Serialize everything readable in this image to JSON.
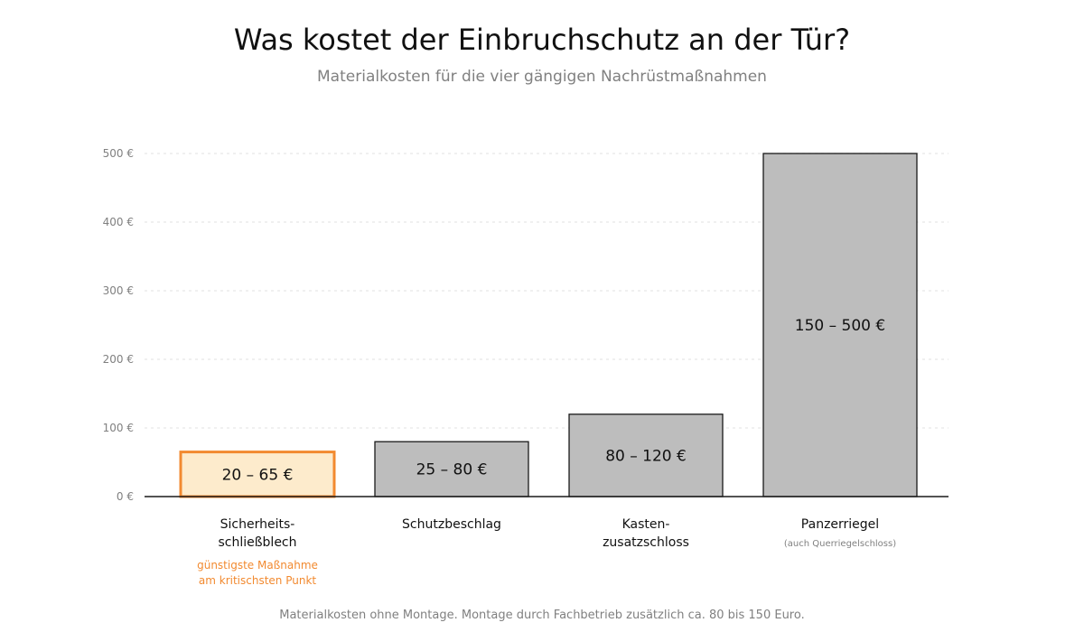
{
  "chart_data": {
    "type": "bar",
    "title": "Was kostet der Einbruchschutz an der Tür?",
    "subtitle": "Materialkosten für die vier gängigen Nachrüstmaßnahmen",
    "ylim": [
      0,
      500
    ],
    "yticks": [
      "0 €",
      "100 €",
      "200 €",
      "300 €",
      "400 €",
      "500 €"
    ],
    "grid": true,
    "categories": [
      {
        "label_lines": [
          "Sicherheits-",
          "schließblech"
        ],
        "value_min": 20,
        "value_max": 65,
        "bar_label": "20 – 65 €",
        "highlight": true,
        "note_lines": [
          "günstigste Maßnahme",
          "am kritischsten Punkt"
        ],
        "note_style": "accent"
      },
      {
        "label_lines": [
          "Schutzbeschlag"
        ],
        "value_min": 25,
        "value_max": 80,
        "bar_label": "25 – 80 €",
        "highlight": false,
        "note_lines": [],
        "note_style": ""
      },
      {
        "label_lines": [
          "Kasten-",
          "zusatzschloss"
        ],
        "value_min": 80,
        "value_max": 120,
        "bar_label": "80 – 120 €",
        "highlight": false,
        "note_lines": [],
        "note_style": ""
      },
      {
        "label_lines": [
          "Panzerriegel"
        ],
        "value_min": 150,
        "value_max": 500,
        "bar_label": "150 – 500 €",
        "highlight": false,
        "note_lines": [
          "(auch Querriegelschloss)"
        ],
        "note_style": "small"
      }
    ],
    "footnote": "Materialkosten ohne Montage. Montage durch Fachbetrieb zusätzlich ca. 80 bis 150 Euro.",
    "colors": {
      "bar_fill": "#bdbdbd",
      "bar_stroke": "#1a1a1a",
      "highlight_fill": "#fdebcc",
      "highlight_stroke": "#f28a30",
      "grid": "#e6e6e6",
      "axis": "#1a1a1a"
    }
  }
}
